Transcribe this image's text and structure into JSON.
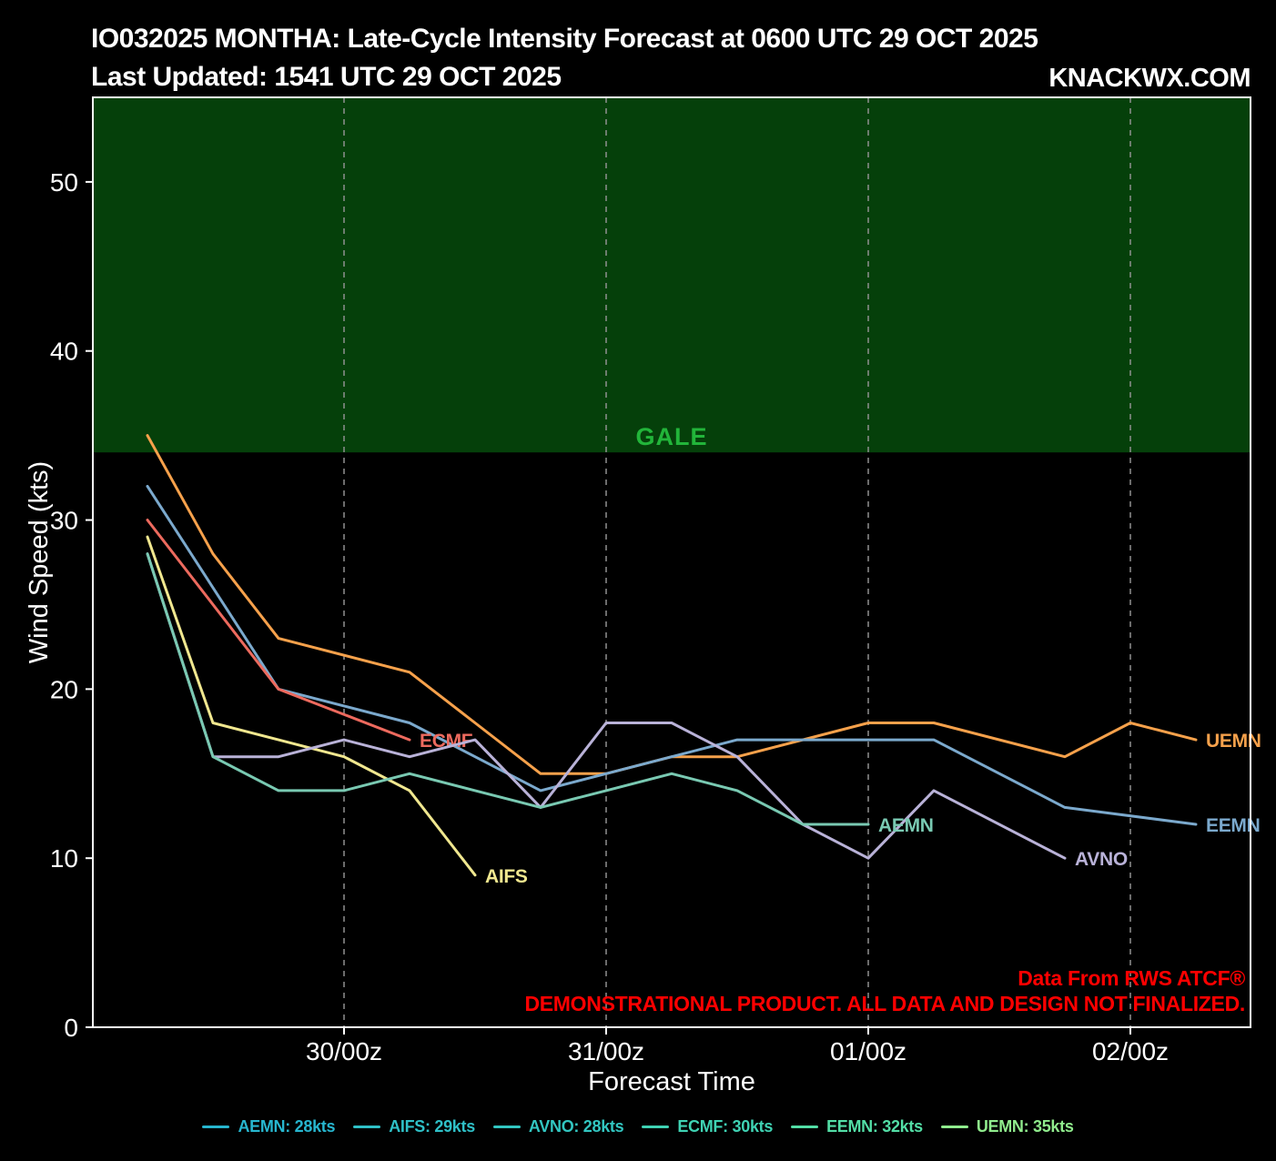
{
  "header": {
    "title": "IO032025 MONTHA: Late-Cycle Intensity Forecast at 0600 UTC 29 OCT 2025",
    "subtitle": "Last Updated: 1541 UTC 29 OCT 2025",
    "brand": "KNACKWX.COM"
  },
  "disclaimer": {
    "line1": "Data From RWS ATCF®",
    "line2": "DEMONSTRATIONAL PRODUCT. ALL DATA AND DESIGN NOT FINALIZED.",
    "color": "#ff0000"
  },
  "chart_data": {
    "type": "line",
    "xlabel": "Forecast Time",
    "ylabel": "Wind Speed (kts)",
    "x_unit": "hours after 0600 UTC 29 OCT 2025",
    "xlim_hours": [
      -5,
      101
    ],
    "ylim": [
      0,
      55
    ],
    "y_ticks": [
      0,
      10,
      20,
      30,
      40,
      50
    ],
    "x_ticks": [
      {
        "hour": 18,
        "label": "30/00z"
      },
      {
        "hour": 42,
        "label": "31/00z"
      },
      {
        "hour": 66,
        "label": "01/00z"
      },
      {
        "hour": 90,
        "label": "02/00z"
      }
    ],
    "grid": "vertical-dashed",
    "grid_color": "#8f8f8f",
    "axis_color": "#ffffff",
    "tick_label_color": "#ffffff",
    "gale_region": {
      "label": "GALE",
      "from_kts": 34,
      "to_kts": 55,
      "fill": "#05400a",
      "label_color": "#22b53a"
    },
    "series": [
      {
        "name": "UEMN",
        "color": "#f6a14b",
        "points": [
          [
            0,
            35
          ],
          [
            6,
            28
          ],
          [
            12,
            23
          ],
          [
            24,
            21
          ],
          [
            30,
            18
          ],
          [
            36,
            15
          ],
          [
            42,
            15
          ],
          [
            48,
            16
          ],
          [
            54,
            16
          ],
          [
            66,
            18
          ],
          [
            72,
            18
          ],
          [
            84,
            16
          ],
          [
            90,
            18
          ],
          [
            96,
            17
          ]
        ]
      },
      {
        "name": "EEMN",
        "color": "#7ba9cd",
        "points": [
          [
            0,
            32
          ],
          [
            6,
            26
          ],
          [
            12,
            20
          ],
          [
            18,
            19
          ],
          [
            24,
            18
          ],
          [
            30,
            16
          ],
          [
            36,
            14
          ],
          [
            42,
            15
          ],
          [
            48,
            16
          ],
          [
            54,
            17
          ],
          [
            66,
            17
          ],
          [
            72,
            17
          ],
          [
            84,
            13
          ],
          [
            96,
            12
          ]
        ]
      },
      {
        "name": "ECMF",
        "color": "#ed6a5e",
        "points": [
          [
            0,
            30
          ],
          [
            12,
            20
          ],
          [
            24,
            17
          ]
        ]
      },
      {
        "name": "AIFS",
        "color": "#f0e78f",
        "points": [
          [
            0,
            29
          ],
          [
            6,
            18
          ],
          [
            12,
            17
          ],
          [
            18,
            16
          ],
          [
            24,
            14
          ],
          [
            30,
            9
          ]
        ]
      },
      {
        "name": "AVNO",
        "color": "#b9b2d8",
        "points": [
          [
            0,
            28
          ],
          [
            6,
            16
          ],
          [
            12,
            16
          ],
          [
            18,
            17
          ],
          [
            24,
            16
          ],
          [
            30,
            17
          ],
          [
            36,
            13
          ],
          [
            42,
            18
          ],
          [
            48,
            18
          ],
          [
            54,
            16
          ],
          [
            60,
            12
          ],
          [
            66,
            10
          ],
          [
            72,
            14
          ],
          [
            84,
            10
          ]
        ]
      },
      {
        "name": "AEMN",
        "color": "#79c9b2",
        "points": [
          [
            0,
            28
          ],
          [
            6,
            16
          ],
          [
            12,
            14
          ],
          [
            18,
            14
          ],
          [
            24,
            15
          ],
          [
            30,
            14
          ],
          [
            36,
            13
          ],
          [
            42,
            14
          ],
          [
            48,
            15
          ],
          [
            54,
            14
          ],
          [
            60,
            12
          ],
          [
            66,
            12
          ]
        ]
      }
    ],
    "legend": [
      {
        "label": "AEMN: 28kts",
        "color": "#27b6cf"
      },
      {
        "label": "AIFS: 29kts",
        "color": "#2fc0c7"
      },
      {
        "label": "AVNO: 28kts",
        "color": "#32c6c1"
      },
      {
        "label": "ECMF: 30kts",
        "color": "#3fd2b3"
      },
      {
        "label": "EEMN: 32kts",
        "color": "#53dea6"
      },
      {
        "label": "UEMN: 35kts",
        "color": "#90ec8d"
      }
    ]
  }
}
